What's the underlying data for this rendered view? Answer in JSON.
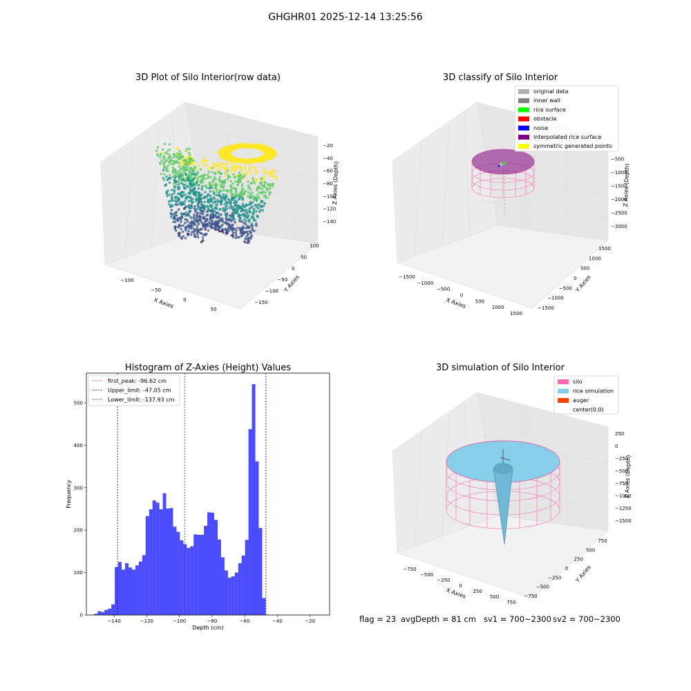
{
  "figure": {
    "suptitle": "GHGHR01 2025-12-14 13:25:56",
    "status": {
      "flag": "flag = 23",
      "avg_depth": "avgDepth = 81 cm",
      "sv1": "sv1 = 700~2300",
      "sv2": "sv2 = 700~2300"
    }
  },
  "panels": {
    "raw": {
      "title": "3D Plot of Silo Interior(row data)",
      "xlabel": "X Axies",
      "ylabel": "Y Axies",
      "zlabel": "Z Axies (Depth)",
      "xticks": [
        "−100",
        "−50",
        "0",
        "50"
      ],
      "yticks": [
        "100",
        "50",
        "0",
        "−50",
        "−100",
        "−150"
      ],
      "zticks": [
        "−20",
        "−40",
        "−60",
        "−80",
        "−100",
        "−120",
        "−140"
      ],
      "colormap": [
        "#440154",
        "#3b528b",
        "#21918c",
        "#5ec962",
        "#fde725"
      ]
    },
    "classify": {
      "title": "3D classify of Silo Interior",
      "xlabel": "X Axies",
      "ylabel": "Y Axies",
      "zlabel": "Z Axies (Depth)",
      "xticks": [
        "−1500",
        "−1000",
        "−500",
        "0",
        "500",
        "1000",
        "1500"
      ],
      "yticks": [
        "1500",
        "1000",
        "500",
        "0",
        "−500",
        "−1000",
        "−1500"
      ],
      "zticks": [
        "0",
        "−500",
        "−1000",
        "−1500",
        "−2000",
        "−2500",
        "−3000"
      ],
      "legend": [
        {
          "label": "original data",
          "color": "#b0b0b0"
        },
        {
          "label": "inner wall",
          "color": "#808080"
        },
        {
          "label": "rice surface",
          "color": "#00ff00"
        },
        {
          "label": "obstacle",
          "color": "#ff0000"
        },
        {
          "label": "noise",
          "color": "#0000ff"
        },
        {
          "label": "interpolated rice surface",
          "color": "#800080"
        },
        {
          "label": "symmetric generated points",
          "color": "#ffff00"
        }
      ]
    },
    "simulation": {
      "title": "3D simulation of Silo Interior",
      "xlabel": "X Axies",
      "ylabel": "Y Axies",
      "zlabel": "Z Axies (Depth)",
      "xticks": [
        "−750",
        "−500",
        "−250",
        "0",
        "250",
        "500",
        "750"
      ],
      "yticks": [
        "750",
        "500",
        "250",
        "0",
        "−250",
        "−500",
        "−750"
      ],
      "zticks": [
        "250",
        "0",
        "−250",
        "−500",
        "−750",
        "−1000",
        "−1250",
        "−1500"
      ],
      "legend": [
        {
          "label": "silo",
          "color": "#ff69b4"
        },
        {
          "label": "rice simulation",
          "color": "#87ceeb"
        },
        {
          "label": "auger",
          "color": "#ff4500"
        },
        {
          "label": "center(0,0)",
          "color": ""
        }
      ]
    }
  },
  "chart_data": [
    {
      "type": "bar",
      "title": "Histogram of Z-Axies (Height) Values",
      "xlabel": "Depth (cm)",
      "ylabel": "Frequency",
      "xlim": [
        -157,
        -8
      ],
      "ylim": [
        0,
        570
      ],
      "xticks": [
        -140,
        -120,
        -100,
        -80,
        -60,
        -40,
        -20
      ],
      "yticks": [
        0,
        100,
        200,
        300,
        400,
        500
      ],
      "bar_color": "#0000ff",
      "bin_start": -152.2,
      "bin_width": 2.1,
      "values": [
        3,
        9,
        7,
        12,
        15,
        25,
        113,
        125,
        107,
        122,
        112,
        107,
        117,
        126,
        141,
        233,
        249,
        270,
        265,
        249,
        287,
        251,
        252,
        208,
        196,
        176,
        167,
        158,
        162,
        190,
        189,
        189,
        210,
        242,
        241,
        224,
        178,
        136,
        105,
        88,
        91,
        100,
        122,
        140,
        177,
        438,
        544,
        362,
        205,
        40
      ],
      "vlines": [
        {
          "label": "first_peak: -96.62 cm",
          "x": -96.62,
          "color": "#ff0000"
        },
        {
          "label": "Upper_limit: -47.05 cm",
          "x": -47.05,
          "color": "#0000ff"
        },
        {
          "label": "Lower_limit: -137.93 cm",
          "x": -137.93,
          "color": "#0000ff"
        }
      ]
    }
  ]
}
